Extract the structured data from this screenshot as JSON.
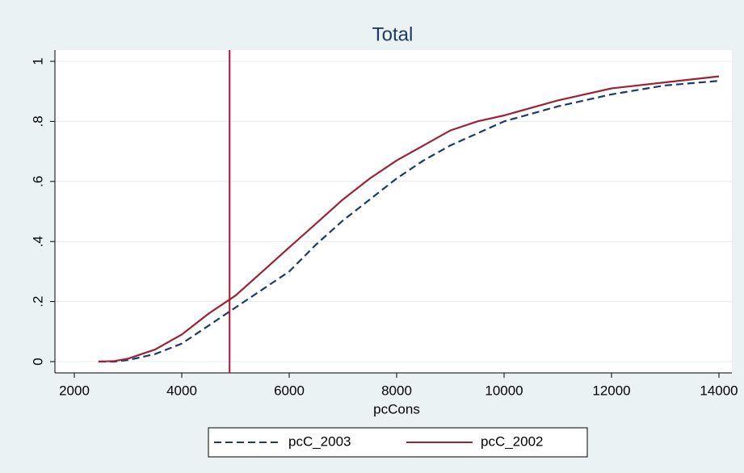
{
  "chart_data": {
    "type": "line",
    "title": "Total",
    "x_label": "pcCons",
    "x": [
      2450,
      2750,
      3000,
      3500,
      4000,
      4500,
      5000,
      5500,
      6000,
      6500,
      7000,
      7500,
      8000,
      8500,
      9000,
      9500,
      10000,
      11000,
      12000,
      13000,
      14000
    ],
    "series": [
      {
        "name": "pcC_2003",
        "color": "#1a3a6b",
        "line_style": "dash",
        "values": [
          0,
          0,
          0.005,
          0.025,
          0.06,
          0.12,
          0.18,
          0.24,
          0.3,
          0.39,
          0.47,
          0.54,
          0.61,
          0.67,
          0.72,
          0.76,
          0.8,
          0.85,
          0.89,
          0.92,
          0.935
        ]
      },
      {
        "name": "pcC_2002",
        "color": "#9b2335",
        "line_style": "solid",
        "values": [
          0,
          0.002,
          0.01,
          0.04,
          0.09,
          0.16,
          0.22,
          0.3,
          0.38,
          0.46,
          0.54,
          0.61,
          0.67,
          0.72,
          0.77,
          0.8,
          0.82,
          0.87,
          0.91,
          0.93,
          0.95
        ]
      }
    ],
    "vline": {
      "value": 4890,
      "color": "#c0102c"
    },
    "xlim": [
      2000,
      14000
    ],
    "xticks": [
      2000,
      4000,
      6000,
      8000,
      10000,
      12000,
      14000
    ],
    "ylim": [
      0,
      1
    ],
    "yticks": [
      0,
      {
        "value": 0.2,
        "label": ".2"
      },
      {
        "value": 0.4,
        "label": ".4"
      },
      {
        "value": 0.6,
        "label": ".6"
      },
      {
        "value": 0.8,
        "label": ".8"
      },
      1
    ],
    "grid": true
  }
}
